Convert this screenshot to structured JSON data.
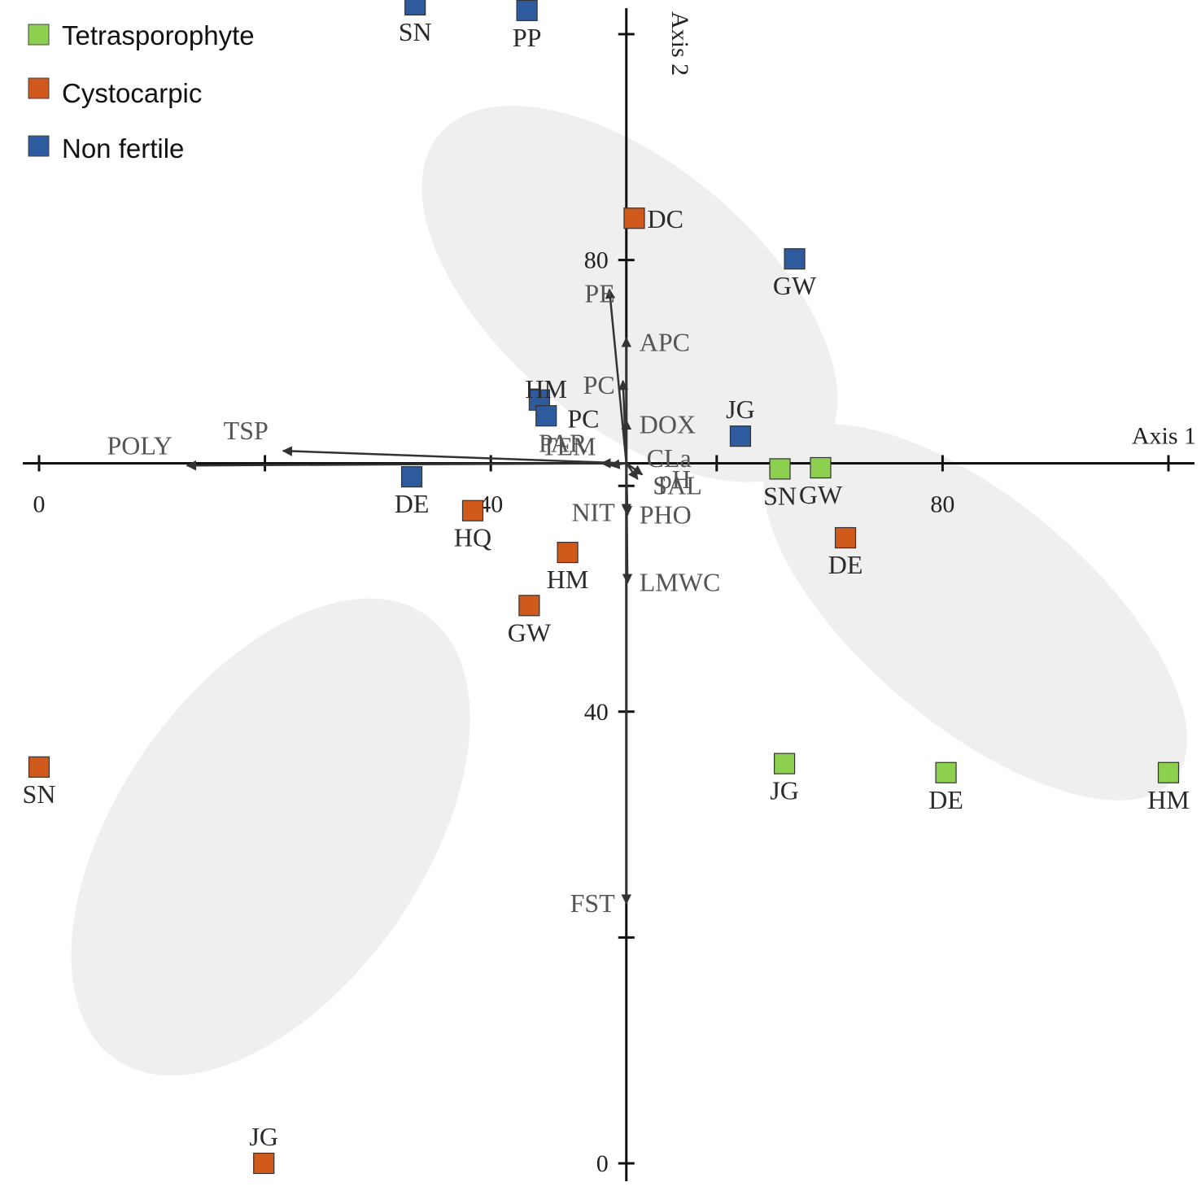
{
  "chart_data": {
    "type": "scatter",
    "title": "",
    "xlabel": "Axis 1",
    "ylabel": "Axis 2",
    "xlim": [
      0,
      100
    ],
    "ylim": [
      0,
      100
    ],
    "x_ticks": [
      {
        "value": 0,
        "label": "0"
      },
      {
        "value": 20,
        "label": ""
      },
      {
        "value": 40,
        "label": "40"
      },
      {
        "value": 60,
        "label": ""
      },
      {
        "value": 80,
        "label": "80"
      },
      {
        "value": 100,
        "label": ""
      }
    ],
    "y_ticks": [
      {
        "value": 0,
        "label": "0"
      },
      {
        "value": 20,
        "label": ""
      },
      {
        "value": 40,
        "label": "40"
      },
      {
        "value": 60,
        "label": ""
      },
      {
        "value": 80,
        "label": "80"
      },
      {
        "value": 100,
        "label": ""
      }
    ],
    "origin": {
      "x": 52,
      "y": 62
    },
    "legend": {
      "position": "top-left",
      "entries": [
        {
          "name": "Tetrasporophyte",
          "color": "#8dcf4f"
        },
        {
          "name": "Cystocarpic",
          "color": "#cf5a1c"
        },
        {
          "name": "Non fertile",
          "color": "#2e5a9e"
        }
      ]
    },
    "series": [
      {
        "name": "Tetrasporophyte",
        "color": "#8dcf4f",
        "points": [
          {
            "label": "SN",
            "x": 65.6,
            "y": 61.5
          },
          {
            "label": "GW",
            "x": 69.2,
            "y": 61.6
          },
          {
            "label": "JG",
            "x": 66.0,
            "y": 35.4
          },
          {
            "label": "DE",
            "x": 80.3,
            "y": 34.6
          },
          {
            "label": "HM",
            "x": 100.0,
            "y": 34.6
          }
        ]
      },
      {
        "name": "Cystocarpic",
        "color": "#cf5a1c",
        "points": [
          {
            "label": "DC",
            "x": 52.7,
            "y": 83.7
          },
          {
            "label": "HQ",
            "x": 38.4,
            "y": 57.8
          },
          {
            "label": "HM",
            "x": 46.8,
            "y": 54.1
          },
          {
            "label": "DE",
            "x": 71.4,
            "y": 55.4
          },
          {
            "label": "GW",
            "x": 43.4,
            "y": 49.4
          },
          {
            "label": "SN",
            "x": 0.0,
            "y": 35.1
          },
          {
            "label": "JG",
            "x": 19.9,
            "y": 0.0
          }
        ]
      },
      {
        "name": "Non fertile",
        "color": "#2e5a9e",
        "points": [
          {
            "label": "SN",
            "x": 33.3,
            "y": 102.6
          },
          {
            "label": "PP",
            "x": 43.2,
            "y": 102.1
          },
          {
            "label": "GW",
            "x": 66.9,
            "y": 80.1
          },
          {
            "label": "PC",
            "x": 44.3,
            "y": 67.6
          },
          {
            "label": "HM",
            "x": 44.9,
            "y": 66.2
          },
          {
            "label": "JG",
            "x": 62.1,
            "y": 64.4
          },
          {
            "label": "DE",
            "x": 33.0,
            "y": 60.8
          }
        ]
      }
    ],
    "vectors": [
      {
        "name": "PE",
        "x": 50.5,
        "y": 77.4,
        "label_anchor": "end"
      },
      {
        "name": "APC",
        "x": 52.0,
        "y": 73.1,
        "label_anchor": "start"
      },
      {
        "name": "PC",
        "x": 51.7,
        "y": 69.3,
        "label_anchor": "end"
      },
      {
        "name": "DOX",
        "x": 52.0,
        "y": 65.8,
        "label_anchor": "start"
      },
      {
        "name": "TSP",
        "x": 21.6,
        "y": 63.1,
        "label_anchor": "end"
      },
      {
        "name": "POLY",
        "x": 13.1,
        "y": 61.8,
        "label_anchor": "end"
      },
      {
        "name": "PAR",
        "x": 49.8,
        "y": 62.0,
        "label_anchor": "end"
      },
      {
        "name": "CLa",
        "x": 52.3,
        "y": 62.2,
        "label_anchor": "start"
      },
      {
        "name": "TEM",
        "x": 50.6,
        "y": 61.8,
        "label_anchor": "end"
      },
      {
        "name": "pH",
        "x": 53.4,
        "y": 61.0,
        "label_anchor": "start"
      },
      {
        "name": "SAL",
        "x": 53.0,
        "y": 60.6,
        "label_anchor": "start"
      },
      {
        "name": "NIT",
        "x": 52.0,
        "y": 57.6,
        "label_anchor": "end"
      },
      {
        "name": "PHO",
        "x": 52.1,
        "y": 57.4,
        "label_anchor": "start"
      },
      {
        "name": "LMWC",
        "x": 52.1,
        "y": 51.4,
        "label_anchor": "start"
      },
      {
        "name": "FST",
        "x": 52.0,
        "y": 23.0,
        "label_anchor": "end"
      }
    ],
    "groups": [
      {
        "name": "Non fertile cluster",
        "cx": 52.3,
        "cy": 77.0,
        "rx": 44,
        "ry": 23,
        "rotation": 40
      },
      {
        "name": "Cystocarpic cluster",
        "cx": 20.5,
        "cy": 28.9,
        "rx": 48,
        "ry": 27,
        "rotation": -55
      },
      {
        "name": "Tetrasporophyte cluster",
        "cx": 82.9,
        "cy": 48.8,
        "rx": 46,
        "ry": 20,
        "rotation": 40
      }
    ]
  },
  "colors": {
    "background": "#ffffff",
    "axis": "#111111",
    "vector": "#333333",
    "cluster_fill": "#efefef"
  }
}
